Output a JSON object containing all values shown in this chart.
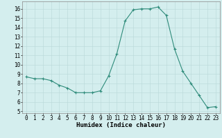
{
  "x": [
    0,
    1,
    2,
    3,
    4,
    5,
    6,
    7,
    8,
    9,
    10,
    11,
    12,
    13,
    14,
    15,
    16,
    17,
    18,
    19,
    20,
    21,
    22,
    23
  ],
  "y": [
    8.7,
    8.5,
    8.5,
    8.3,
    7.8,
    7.5,
    7.0,
    7.0,
    7.0,
    7.2,
    8.8,
    11.2,
    14.7,
    15.9,
    16.0,
    16.0,
    16.2,
    15.3,
    11.7,
    9.3,
    8.0,
    6.7,
    5.4,
    5.5
  ],
  "line_color": "#2e8b7a",
  "marker": "+",
  "marker_size": 3,
  "marker_lw": 0.8,
  "line_width": 0.8,
  "background_color": "#d4eeee",
  "grid_color": "#b8d8d8",
  "xlabel": "Humidex (Indice chaleur)",
  "xlim": [
    -0.5,
    23.5
  ],
  "ylim": [
    4.8,
    16.8
  ],
  "yticks": [
    5,
    6,
    7,
    8,
    9,
    10,
    11,
    12,
    13,
    14,
    15,
    16
  ],
  "xticks": [
    0,
    1,
    2,
    3,
    4,
    5,
    6,
    7,
    8,
    9,
    10,
    11,
    12,
    13,
    14,
    15,
    16,
    17,
    18,
    19,
    20,
    21,
    22,
    23
  ],
  "label_fontsize": 6.5,
  "tick_fontsize": 5.5
}
